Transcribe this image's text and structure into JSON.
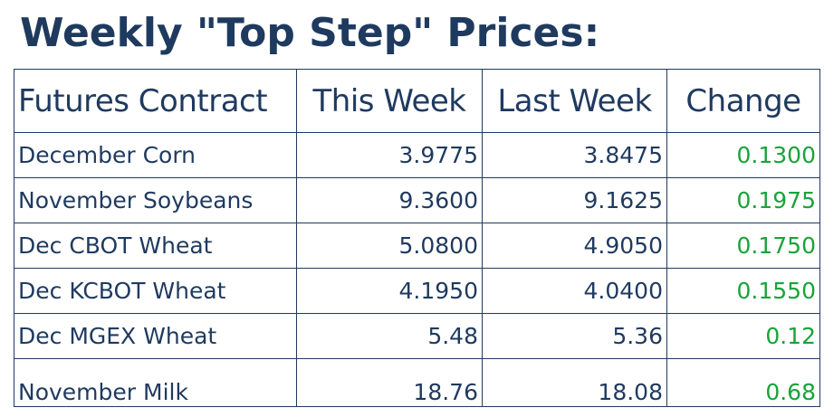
{
  "title": "Weekly \"Top Step\" Prices:",
  "colors": {
    "text": "#1f3a5f",
    "positive_change": "#1aa33a",
    "border": "#1f3a5f"
  },
  "table": {
    "headers": [
      "Futures Contract",
      "This Week",
      "Last Week",
      "Change"
    ],
    "rows": [
      {
        "contract": "December Corn",
        "this_week": "3.9775",
        "last_week": "3.8475",
        "change": "0.1300"
      },
      {
        "contract": "November Soybeans",
        "this_week": "9.3600",
        "last_week": "9.1625",
        "change": "0.1975"
      },
      {
        "contract": "Dec CBOT Wheat",
        "this_week": "5.0800",
        "last_week": "4.9050",
        "change": "0.1750"
      },
      {
        "contract": "Dec KCBOT Wheat",
        "this_week": "4.1950",
        "last_week": "4.0400",
        "change": "0.1550"
      },
      {
        "contract": "Dec MGEX Wheat",
        "this_week": "5.48",
        "last_week": "5.36",
        "change": "0.12"
      },
      {
        "contract": "November Milk",
        "this_week": "18.76",
        "last_week": "18.08",
        "change": "0.68"
      }
    ]
  }
}
